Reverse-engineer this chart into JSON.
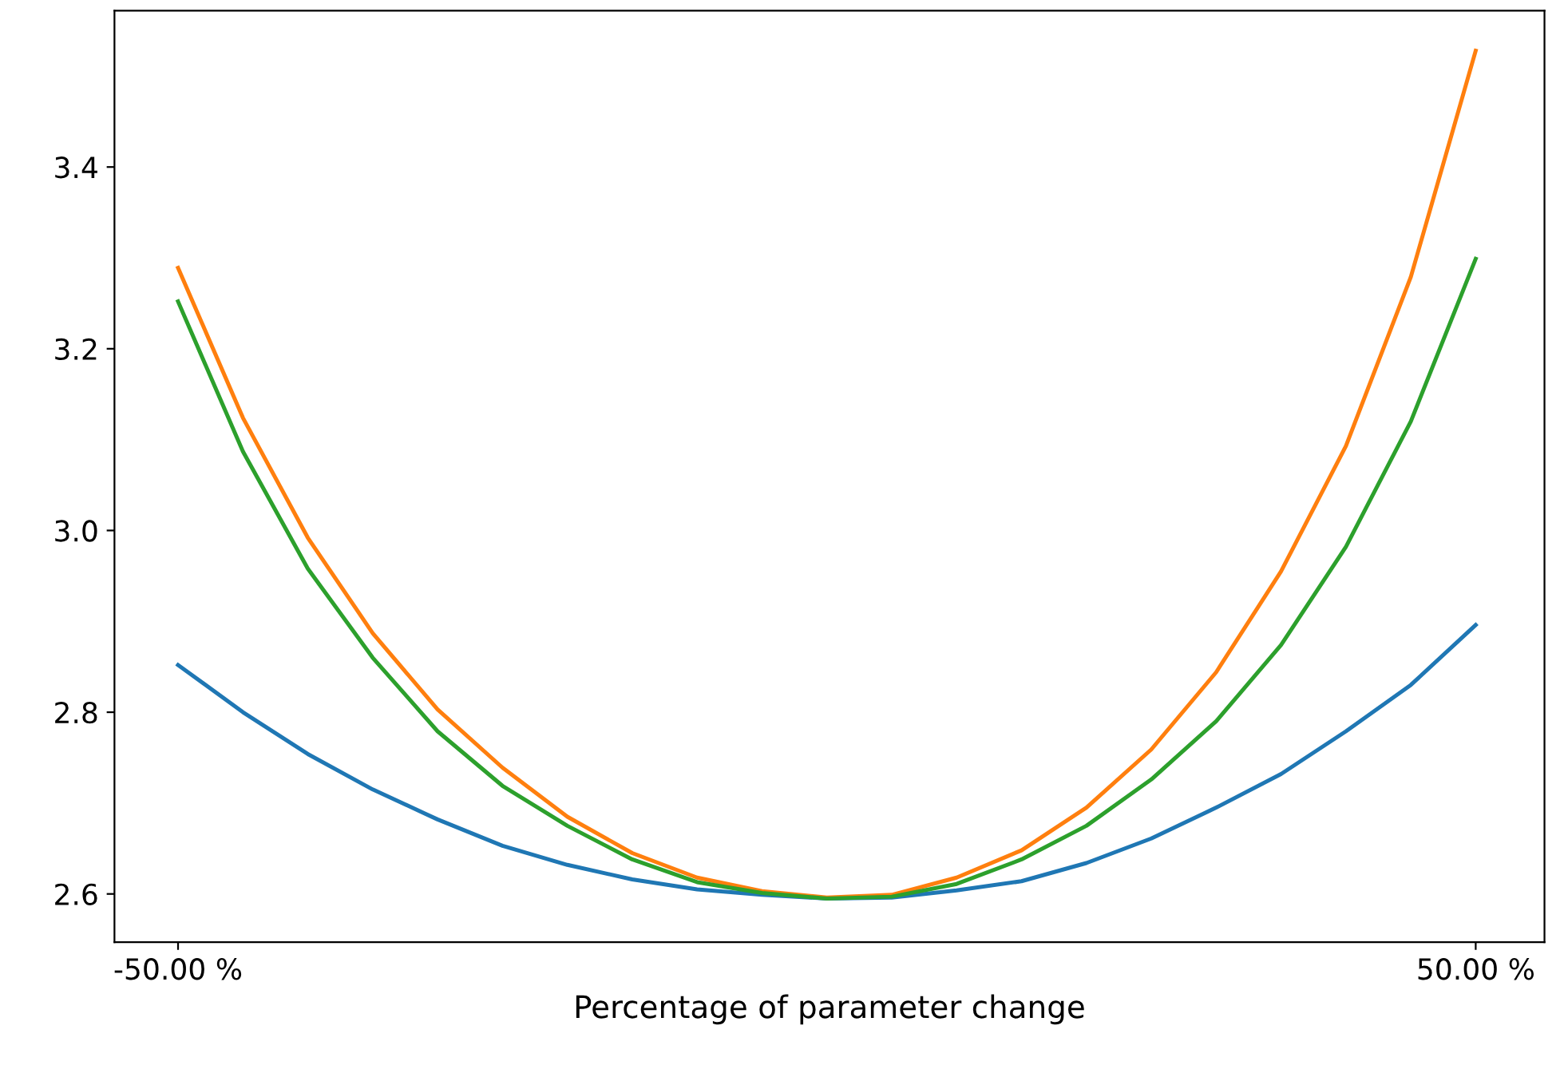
{
  "chart_data": {
    "type": "line",
    "xlabel": "Percentage of parameter change",
    "x": [
      -50,
      -45,
      -40,
      -35,
      -30,
      -25,
      -20,
      -15,
      -10,
      -5,
      0,
      5,
      10,
      15,
      20,
      25,
      30,
      35,
      40,
      45,
      50
    ],
    "series": [
      {
        "color": "#1f77b4",
        "values": [
          2.852,
          2.8,
          2.754,
          2.715,
          2.682,
          2.653,
          2.632,
          2.616,
          2.605,
          2.599,
          2.595,
          2.596,
          2.604,
          2.614,
          2.634,
          2.661,
          2.695,
          2.732,
          2.779,
          2.83,
          2.896
        ]
      },
      {
        "color": "#ff7f0e",
        "values": [
          3.289,
          3.124,
          2.992,
          2.887,
          2.803,
          2.739,
          2.685,
          2.645,
          2.618,
          2.603,
          2.596,
          2.599,
          2.618,
          2.648,
          2.695,
          2.759,
          2.844,
          2.955,
          3.093,
          3.279,
          3.528
        ]
      },
      {
        "color": "#2ca02c",
        "values": [
          3.252,
          3.087,
          2.958,
          2.86,
          2.779,
          2.719,
          2.675,
          2.638,
          2.613,
          2.601,
          2.595,
          2.597,
          2.611,
          2.638,
          2.675,
          2.726,
          2.79,
          2.874,
          2.982,
          3.12,
          3.299
        ]
      }
    ],
    "xlim": [
      -54.9,
      55.3
    ],
    "ylim": [
      2.547,
      3.572
    ],
    "xticks": [
      {
        "value": -50,
        "label": "-50.00 %"
      },
      {
        "value": 50,
        "label": "50.00 %"
      }
    ],
    "yticks": [
      2.6,
      2.8,
      {
        "value": 3,
        "label": "3.0"
      },
      3.2,
      3.4
    ],
    "grid": false,
    "legend": false
  }
}
